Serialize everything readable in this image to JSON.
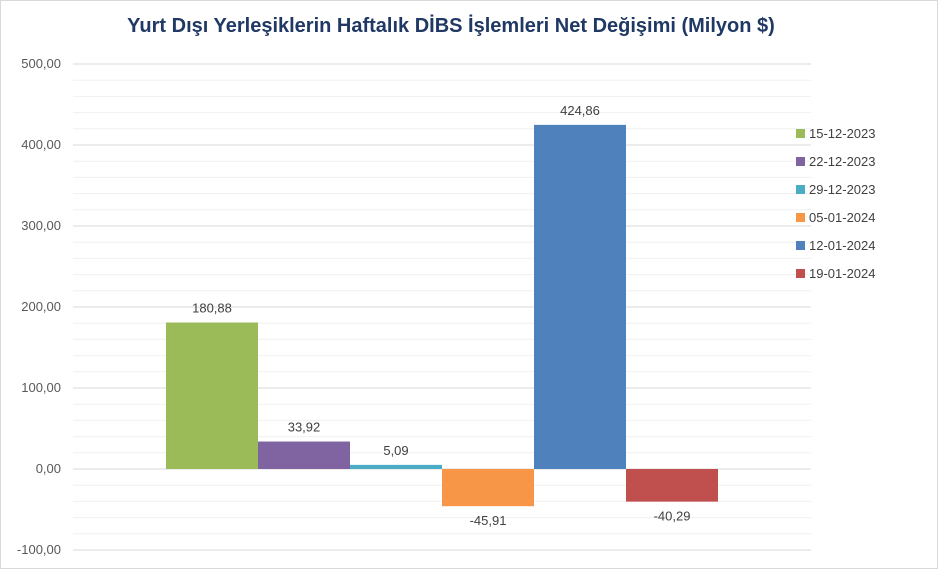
{
  "chart_data": {
    "type": "bar",
    "title": "Yurt Dışı Yerleşiklerin Haftalık DİBS İşlemleri Net Değişimi (Milyon $)",
    "xlabel": "",
    "ylabel": "",
    "ylim": [
      -100,
      500
    ],
    "yticks": [
      500,
      400,
      300,
      200,
      100,
      0,
      -100
    ],
    "ytick_labels": [
      "500,00",
      "400,00",
      "300,00",
      "200,00",
      "100,00",
      "0,00",
      "-100,00"
    ],
    "grid": true,
    "legend_position": "right",
    "series": [
      {
        "name": "15-12-2023",
        "value": 180.88,
        "label": "180,88",
        "color": "#9bbb59"
      },
      {
        "name": "22-12-2023",
        "value": 33.92,
        "label": "33,92",
        "color": "#8064a2"
      },
      {
        "name": "29-12-2023",
        "value": 5.09,
        "label": "5,09",
        "color": "#4bacc6"
      },
      {
        "name": "05-01-2024",
        "value": -45.91,
        "label": "-45,91",
        "color": "#f79646"
      },
      {
        "name": "12-01-2024",
        "value": 424.86,
        "label": "424,86",
        "color": "#4f81bd"
      },
      {
        "name": "19-01-2024",
        "value": -40.29,
        "label": "-40,29",
        "color": "#c0504d"
      }
    ]
  }
}
